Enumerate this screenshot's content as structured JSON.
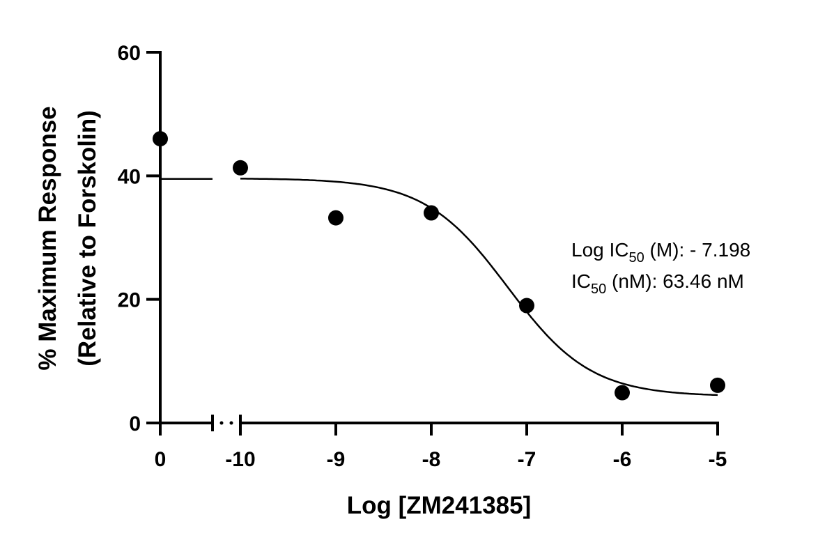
{
  "chart_data": {
    "type": "scatter",
    "title": "",
    "xlabel": "Log [ZM241385]",
    "ylabel_line1": "% Maximum Response",
    "ylabel_line2": "(Relative to Forskolin)",
    "ylim": [
      0,
      60
    ],
    "y_ticks": [
      0,
      20,
      40,
      60
    ],
    "y_tick_labels": [
      "0",
      "20",
      "40",
      "60"
    ],
    "x_axis_break": true,
    "baseline_x_tick_label": "0",
    "xlim": [
      -10,
      -5
    ],
    "x_ticks": [
      -10,
      -9,
      -8,
      -7,
      -6,
      -5
    ],
    "x_tick_labels": [
      "-10",
      "-9",
      "-8",
      "-7",
      "-6",
      "-5"
    ],
    "baseline_point": {
      "x": 0,
      "y": 46
    },
    "baseline_fit_y": 39.5,
    "points": [
      {
        "x": -10,
        "y": 41.3
      },
      {
        "x": -9,
        "y": 33.2
      },
      {
        "x": -8,
        "y": 34.0
      },
      {
        "x": -7,
        "y": 19.0
      },
      {
        "x": -6,
        "y": 4.9
      },
      {
        "x": -5,
        "y": 6.1
      }
    ],
    "fit": {
      "top": 39.6,
      "bottom": 4.3,
      "log_ic50": -7.198,
      "hill_slope": -1.0
    },
    "annotations": [
      {
        "pre": "Log IC",
        "sub": "50",
        "post": " (M): - 7.198"
      },
      {
        "pre": "IC",
        "sub": "50",
        "post": " (nM): 63.46 nM"
      }
    ],
    "grid": false,
    "legend": "none"
  }
}
